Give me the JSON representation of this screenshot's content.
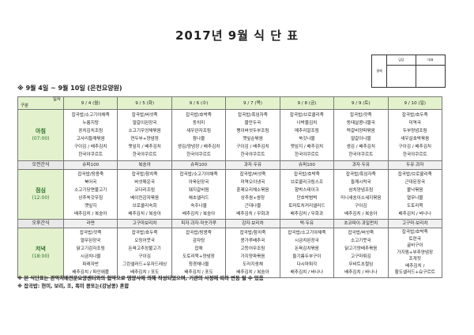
{
  "title": "2017년 9월 식 단 표",
  "approval": {
    "label": "결재",
    "columns": [
      "담당",
      "대표"
    ]
  },
  "subtitle": "※ 9월 4일 ~ 9월 10일 (은천요양원)",
  "header": {
    "corner_top": "일자",
    "corner_bottom": "구분",
    "days": [
      "9 / 4 (월)",
      "9 / 5 (화)",
      "9 / 6 (수)",
      "9 / 7 (목)",
      "9 / 8 (금)",
      "9 / 9 (토)",
      "9 / 10 (일)"
    ]
  },
  "breakfast": {
    "label": "아침",
    "time": "(07:00)",
    "days": [
      [
        "잡곡밥/소고기야채죽",
        "누룽지탕",
        "꽁치김치조림",
        "고사리들깨볶음",
        "구이김 / 배추김치",
        "한국야쿠르트"
      ],
      [
        "잡곡밥/버섯죽",
        "얼갈이된장국",
        "소고기우엉채볶음",
        "연두부+양념장",
        "깻잎지 / 배추김치",
        "한국야쿠르트"
      ],
      [
        "잡곡밥/호박죽",
        "동치미",
        "새우완자조림",
        "참나물",
        "생김/양념장 / 배추김치",
        "한국야쿠르트"
      ],
      [
        "잡곡밥/흑임자죽",
        "물만두국",
        "팽이버섯두부조림",
        "깻잎순볶음",
        "구이김 / 배추김치",
        "한국야쿠르트"
      ],
      [
        "잡곡밥/브로콜리죽",
        "나박물김치",
        "메추리알조림",
        "쑥갓나물",
        "깻잎지 / 배추김치",
        "한국야쿠르트"
      ],
      [
        "잡곡밥/잣죽",
        "동태살콩나물국",
        "떡갈비양파볶음",
        "얼갈이나물",
        "생김 / 배추김치",
        "한국야쿠르트"
      ],
      [
        "잡곡밥/호두죽",
        "미역국",
        "두부양념조림",
        "새우살호박볶음",
        "구이김 / 배추김치",
        "한국야쿠르트"
      ]
    ]
  },
  "am_snack": {
    "label": "오전간식",
    "days": [
      "슈퍼100",
      "복숭아",
      "슈퍼100",
      "과자·두유",
      "슈퍼100",
      "과자·두유",
      "두유·과자"
    ]
  },
  "lunch": {
    "label": "점심",
    "time": "(12:00)",
    "days": [
      [
        "잡곡밥/땅콩죽",
        "북어국",
        "소고기당면불고기",
        "상추쑥갓무침",
        "깻잎지",
        "배추김치 / 복숭아"
      ],
      [
        "잡곡밥/참치죽",
        "버섯매운국",
        "코다리조림",
        "베이컨감자볶음",
        "브로콜리숙회",
        "배추김치 / 복숭아"
      ],
      [
        "잡곡밥/소고기야채죽",
        "아욱된장국",
        "돼지갈비찜",
        "해초샐러드",
        "숙주나물",
        "배추김치 / 복숭아"
      ],
      [
        "잡곡밥/버섯죽",
        "미역오이냉국",
        "훈제오리채소볶음",
        "상추쌈+쌈장",
        "근대나물",
        "배추김치 / 무화과"
      ],
      [
        "잡곡밥/호박죽",
        "브로콜리크림스프",
        "함박스테이크",
        "단호박범벅",
        "토마토치커리샐러드",
        "배추김치 / 무화과"
      ],
      [
        "잡곡밥/흑임자죽",
        "들깨시락국",
        "삼치양념조림",
        "미니새송이소세지볶음",
        "구이김",
        "배추김치 / 복숭아"
      ],
      [
        "잡곡밥/브로콜리죽",
        "근대된장국",
        "불낙볶음",
        "열무나물",
        "도토리묵",
        "배추김치 / 바나나"
      ]
    ]
  },
  "pm_snack": {
    "label": "오후간식",
    "days": [
      "라면",
      "고구마보리차",
      "피자·과자·미숫가루",
      "감자·보리차",
      "떡·두유",
      "초코파이·과일펀치",
      "고구마·보리차"
    ]
  },
  "dinner": {
    "label": "저녁",
    "time": "(18:00)",
    "days": [
      [
        "잡곡밥/잣죽",
        "열무된장국",
        "닭고기감자조림",
        "시금치나물",
        "파래자반",
        "배추김치 / 파인애플"
      ],
      [
        "잡곡밥/호두죽",
        "오징어뭇국",
        "돈육고추장불고기",
        "구이김",
        "그린샐러드+유자드레싱",
        "배추김치 / 포도"
      ],
      [
        "잡곡밥/땅콩죽",
        "감자탕",
        "잡채",
        "도토리묵+양념장",
        "청경채나물",
        "배추김치 / 포도"
      ],
      [
        "잡곡밥/참치죽",
        "콩가루배추국",
        "고등어무조림",
        "가지양파볶음",
        "도라지생채",
        "배추김치 / 복숭아"
      ],
      [
        "잡곡밥/소고기야채죽",
        "시금치된장국",
        "돈육김치볶음",
        "들기름두부구이",
        "다시마튀각",
        "배추김치 / 바나나"
      ],
      [
        "잡곡밥/버섯죽",
        "소고기뭇국",
        "닭고기양배추볶음",
        "고구마튀김",
        "무비트초절임",
        "배추김치 / 바나나"
      ],
      [
        "잡곡밥/호박죽",
        "토란국",
        "굴비구이",
        "가지찜+부추양념장",
        "조개젓",
        "배추김치 /",
        "황도샐러드+요구르트"
      ]
    ]
  },
  "footer": [
    "※ 본 식단표는 관악치매전문요양센터와의 협약으로 영양사에 의해 작성되었으며, 기관의 사정에 따라 변동 될 수 있음",
    "※ 잡곡밥: 현미, 보리, 조, 흑미 콩또는(강낭콩) 혼합"
  ]
}
